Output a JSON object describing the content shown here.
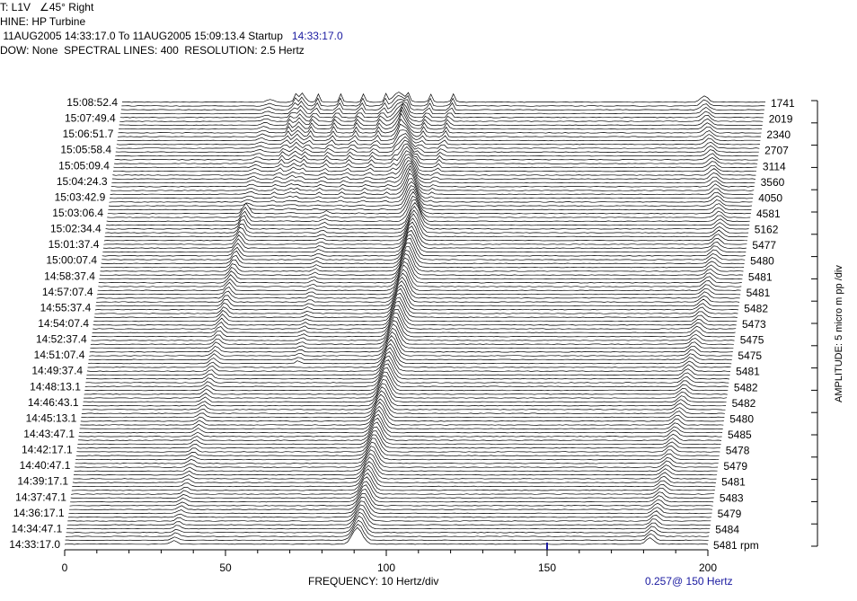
{
  "header": {
    "line1": "T: L1V",
    "line1_angle": "45° Right",
    "line2": "HINE: HP Turbine",
    "line3": " 11AUG2005 14:33:17.0 To 11AUG2005 15:09:13.4 Startup",
    "line3_time": "14:33:17.0",
    "line4": "DOW: None  SPECTRAL LINES: 400  RESOLUTION: 2.5 Hertz"
  },
  "footer": {
    "x_title": "FREQUENCY: 10 Hertz/div",
    "cursor_readout": "0.257@ 150 Hertz",
    "amplitude_label": "AMPLITUDE: 5 micro m pp /div"
  },
  "colors": {
    "trace": "#000000",
    "cursor": "#1a1aa0",
    "background": "#ffffff"
  },
  "chart_data": {
    "type": "waterfall",
    "xlabel": "FREQUENCY: 10 Hertz/div",
    "xlim": [
      0,
      200
    ],
    "x_ticks": [
      0,
      50,
      100,
      150,
      200
    ],
    "x_tick_labels": [
      "0",
      "50",
      "100",
      "150",
      "200"
    ],
    "cursor_frequency": 150,
    "cursor_amplitude": 0.257,
    "time_labels": [
      "14:33:17.0",
      "14:34:47.1",
      "14:36:17.1",
      "14:37:47.1",
      "14:39:17.1",
      "14:40:47.1",
      "14:42:17.1",
      "14:43:47.1",
      "14:45:13.1",
      "14:46:43.1",
      "14:48:13.1",
      "14:49:37.4",
      "14:51:07.4",
      "14:52:37.4",
      "14:54:07.4",
      "14:55:37.4",
      "14:57:07.4",
      "14:58:37.4",
      "15:00:07.4",
      "15:01:37.4",
      "15:02:34.4",
      "15:03:06.4",
      "15:03:42.9",
      "15:04:24.3",
      "15:05:09.4",
      "15:05:58.4",
      "15:06:51.7",
      "15:07:49.4",
      "15:08:52.4"
    ],
    "rpm_labels": [
      "5481 rpm",
      "5484",
      "5479",
      "5483",
      "5481",
      "5479",
      "5478",
      "5485",
      "5480",
      "5482",
      "5482",
      "5481",
      "5475",
      "5475",
      "5473",
      "5482",
      "5481",
      "5481",
      "5480",
      "5477",
      "5162",
      "4581",
      "4050",
      "3560",
      "3114",
      "2707",
      "2340",
      "2019",
      "1741"
    ]
  }
}
